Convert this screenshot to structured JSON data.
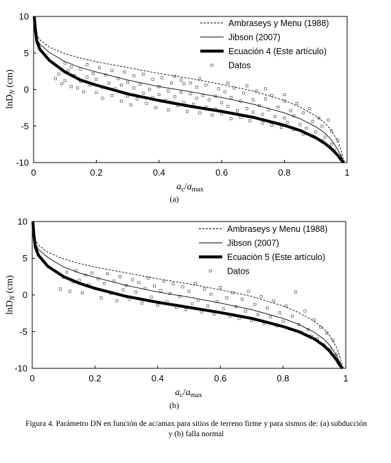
{
  "figure": {
    "caption_line1": "Figura 4. Parámetro DN en función de ac/amax para sitios de terreno firme y para sismos de: (a) subducción",
    "caption_line2": "y (b) falla normal"
  },
  "chart_data": [
    {
      "type": "line",
      "panel_label": "(a)",
      "xlabel": "ac/amax",
      "ylabel": "lnDN (cm)",
      "xlim": [
        0,
        1
      ],
      "ylim": [
        -10,
        10
      ],
      "x_ticks": [
        "0",
        "0.2",
        "0.4",
        "0.6",
        "0.8",
        "1"
      ],
      "y_ticks": [
        "10",
        "5",
        "0",
        "-5",
        "-10"
      ],
      "legend_position": "top-right",
      "series": [
        {
          "name": "Ambraseys y Menu (1988)",
          "style": "dashed",
          "x": [
            0.005,
            0.01,
            0.02,
            0.05,
            0.1,
            0.15,
            0.2,
            0.3,
            0.4,
            0.5,
            0.6,
            0.7,
            0.8,
            0.85,
            0.9,
            0.93,
            0.95,
            0.97,
            0.98,
            0.99
          ],
          "y": [
            9.5,
            7.4,
            6.8,
            5.8,
            4.9,
            4.3,
            3.8,
            3.0,
            2.2,
            1.5,
            0.7,
            -0.2,
            -1.5,
            -2.4,
            -3.6,
            -4.6,
            -5.6,
            -7.1,
            -8.2,
            -9.8
          ]
        },
        {
          "name": "Jibson (2007)",
          "style": "solid-thin",
          "x": [
            0.005,
            0.01,
            0.02,
            0.05,
            0.1,
            0.15,
            0.2,
            0.3,
            0.4,
            0.5,
            0.6,
            0.7,
            0.8,
            0.85,
            0.9,
            0.93,
            0.95,
            0.97,
            0.98,
            0.99
          ],
          "y": [
            9.0,
            7.0,
            6.2,
            5.1,
            3.8,
            3.0,
            2.4,
            1.3,
            0.4,
            -0.3,
            -1.1,
            -2.0,
            -3.2,
            -4.0,
            -5.1,
            -6.0,
            -6.9,
            -8.2,
            -9.1,
            -10.0
          ]
        },
        {
          "name": "Ecuación 4 (Este artículo)",
          "style": "solid-thick",
          "x": [
            0.002,
            0.005,
            0.01,
            0.02,
            0.05,
            0.1,
            0.15,
            0.2,
            0.3,
            0.4,
            0.5,
            0.6,
            0.7,
            0.8,
            0.85,
            0.9,
            0.93,
            0.95,
            0.97,
            0.98,
            0.99
          ],
          "y": [
            10.0,
            8.5,
            6.6,
            5.5,
            4.0,
            2.4,
            1.3,
            0.6,
            -0.6,
            -1.5,
            -2.3,
            -3.0,
            -3.8,
            -4.9,
            -5.6,
            -6.6,
            -7.4,
            -8.1,
            -9.0,
            -9.6,
            -10.0
          ]
        }
      ],
      "scatter": {
        "name": "Datos",
        "points": [
          [
            0.07,
            1.5
          ],
          [
            0.08,
            2.1
          ],
          [
            0.09,
            0.8
          ],
          [
            0.1,
            3.6
          ],
          [
            0.1,
            1.2
          ],
          [
            0.11,
            2.6
          ],
          [
            0.12,
            0.4
          ],
          [
            0.12,
            3.1
          ],
          [
            0.13,
            1.9
          ],
          [
            0.14,
            0.2
          ],
          [
            0.15,
            2.8
          ],
          [
            0.15,
            1.1
          ],
          [
            0.16,
            -0.3
          ],
          [
            0.17,
            3.4
          ],
          [
            0.17,
            1.7
          ],
          [
            0.18,
            0.6
          ],
          [
            0.19,
            2.2
          ],
          [
            0.2,
            -0.4
          ],
          [
            0.2,
            1.4
          ],
          [
            0.21,
            3.0
          ],
          [
            0.22,
            0.3
          ],
          [
            0.22,
            -1.2
          ],
          [
            0.23,
            2.0
          ],
          [
            0.24,
            0.9
          ],
          [
            0.25,
            -0.8
          ],
          [
            0.25,
            2.6
          ],
          [
            0.26,
            0.1
          ],
          [
            0.27,
            1.5
          ],
          [
            0.28,
            -1.6
          ],
          [
            0.28,
            0.6
          ],
          [
            0.29,
            2.4
          ],
          [
            0.3,
            -0.9
          ],
          [
            0.3,
            1.0
          ],
          [
            0.31,
            -2.1
          ],
          [
            0.32,
            0.2
          ],
          [
            0.32,
            1.9
          ],
          [
            0.33,
            -1.3
          ],
          [
            0.34,
            0.7
          ],
          [
            0.35,
            -0.5
          ],
          [
            0.35,
            2.1
          ],
          [
            0.36,
            -1.9
          ],
          [
            0.37,
            0.0
          ],
          [
            0.38,
            1.4
          ],
          [
            0.38,
            -1.1
          ],
          [
            0.39,
            -2.5
          ],
          [
            0.4,
            0.4
          ],
          [
            0.4,
            -0.7
          ],
          [
            0.41,
            1.6
          ],
          [
            0.42,
            -1.5
          ],
          [
            0.43,
            -0.2
          ],
          [
            0.43,
            -2.8
          ],
          [
            0.44,
            0.9
          ],
          [
            0.45,
            -1.0
          ],
          [
            0.45,
            1.8
          ],
          [
            0.46,
            -2.2
          ],
          [
            0.47,
            -0.4
          ],
          [
            0.48,
            0.8
          ],
          [
            0.48,
            -1.8
          ],
          [
            0.49,
            -3.0
          ],
          [
            0.5,
            -0.6
          ],
          [
            0.5,
            0.9
          ],
          [
            0.51,
            -2.0
          ],
          [
            0.52,
            -1.2
          ],
          [
            0.52,
            0.3
          ],
          [
            0.53,
            -3.2
          ],
          [
            0.54,
            -0.8
          ],
          [
            0.55,
            -2.4
          ],
          [
            0.55,
            0.6
          ],
          [
            0.56,
            -1.4
          ],
          [
            0.57,
            -3.5
          ],
          [
            0.58,
            -0.9
          ],
          [
            0.58,
            -2.7
          ],
          [
            0.59,
            0.1
          ],
          [
            0.6,
            -1.8
          ],
          [
            0.6,
            -3.3
          ],
          [
            0.61,
            -0.3
          ],
          [
            0.62,
            -2.3
          ],
          [
            0.63,
            -4.0
          ],
          [
            0.63,
            -1.1
          ],
          [
            0.64,
            0.2
          ],
          [
            0.65,
            -2.9
          ],
          [
            0.66,
            -1.6
          ],
          [
            0.66,
            -3.8
          ],
          [
            0.67,
            -0.5
          ],
          [
            0.68,
            -2.6
          ],
          [
            0.69,
            -4.3
          ],
          [
            0.7,
            -1.4
          ],
          [
            0.7,
            -3.1
          ],
          [
            0.71,
            -0.2
          ],
          [
            0.72,
            -2.2
          ],
          [
            0.73,
            -4.6
          ],
          [
            0.73,
            -3.4
          ],
          [
            0.74,
            -1.3
          ],
          [
            0.75,
            -2.8
          ],
          [
            0.76,
            -4.9
          ],
          [
            0.76,
            -0.8
          ],
          [
            0.77,
            -3.7
          ],
          [
            0.78,
            -2.4
          ],
          [
            0.79,
            -5.2
          ],
          [
            0.8,
            -3.9
          ],
          [
            0.8,
            -1.6
          ],
          [
            0.81,
            -4.5
          ],
          [
            0.82,
            -2.9
          ],
          [
            0.83,
            -5.5
          ],
          [
            0.83,
            -3.6
          ],
          [
            0.84,
            -1.9
          ],
          [
            0.85,
            -4.8
          ],
          [
            0.86,
            -6.1
          ],
          [
            0.86,
            -3.2
          ],
          [
            0.87,
            -5.3
          ],
          [
            0.88,
            -2.6
          ],
          [
            0.89,
            -6.4
          ],
          [
            0.89,
            -4.4
          ],
          [
            0.9,
            -5.8
          ],
          [
            0.91,
            -3.9
          ],
          [
            0.92,
            -7.0
          ],
          [
            0.92,
            -5.0
          ],
          [
            0.93,
            -6.5
          ],
          [
            0.94,
            -4.2
          ],
          [
            0.95,
            -7.5
          ],
          [
            0.95,
            -5.7
          ],
          [
            0.96,
            -8.3
          ],
          [
            0.97,
            -6.9
          ],
          [
            0.98,
            -9.1
          ],
          [
            0.47,
            1.3
          ],
          [
            0.53,
            1.5
          ],
          [
            0.62,
            0.9
          ],
          [
            0.68,
            0.5
          ],
          [
            0.74,
            0.1
          ],
          [
            0.8,
            -0.7
          ]
        ]
      }
    },
    {
      "type": "line",
      "panel_label": "(b)",
      "xlabel": "ac/amax",
      "ylabel": "lnDN (cm)",
      "xlim": [
        0,
        1
      ],
      "ylim": [
        -10,
        10
      ],
      "x_ticks": [
        "0",
        "0.2",
        "0.4",
        "0.6",
        "0.8",
        "1"
      ],
      "y_ticks": [
        "10",
        "5",
        "0",
        "-5",
        "-10"
      ],
      "legend_position": "top-right",
      "series": [
        {
          "name": "Ambraseys y Menu (1988)",
          "style": "dashed",
          "x": [
            0.005,
            0.01,
            0.02,
            0.05,
            0.1,
            0.15,
            0.2,
            0.3,
            0.4,
            0.5,
            0.6,
            0.7,
            0.8,
            0.85,
            0.9,
            0.93,
            0.95,
            0.97,
            0.98,
            0.99
          ],
          "y": [
            9.5,
            7.4,
            6.8,
            5.8,
            4.9,
            4.3,
            3.8,
            3.0,
            2.2,
            1.5,
            0.7,
            -0.2,
            -1.5,
            -2.4,
            -3.6,
            -4.6,
            -5.6,
            -7.1,
            -8.2,
            -9.8
          ]
        },
        {
          "name": "Jibson (2007)",
          "style": "solid-thin",
          "x": [
            0.005,
            0.01,
            0.02,
            0.05,
            0.1,
            0.15,
            0.2,
            0.3,
            0.4,
            0.5,
            0.6,
            0.7,
            0.8,
            0.85,
            0.9,
            0.93,
            0.95,
            0.97,
            0.98,
            0.99
          ],
          "y": [
            9.0,
            7.0,
            6.2,
            5.1,
            3.8,
            3.0,
            2.4,
            1.3,
            0.4,
            -0.3,
            -1.1,
            -2.0,
            -3.2,
            -4.0,
            -5.1,
            -6.0,
            -6.9,
            -8.2,
            -9.1,
            -10.0
          ]
        },
        {
          "name": "Ecuación 5 (Este artículo)",
          "style": "solid-thick",
          "x": [
            0.002,
            0.005,
            0.01,
            0.02,
            0.05,
            0.1,
            0.15,
            0.2,
            0.3,
            0.4,
            0.5,
            0.6,
            0.7,
            0.8,
            0.85,
            0.9,
            0.93,
            0.95,
            0.97,
            0.98,
            0.99
          ],
          "y": [
            10.0,
            8.3,
            6.5,
            5.4,
            3.9,
            2.5,
            1.6,
            0.9,
            -0.2,
            -1.0,
            -1.7,
            -2.4,
            -3.2,
            -4.3,
            -5.0,
            -6.0,
            -6.9,
            -7.7,
            -8.8,
            -9.5,
            -10.0
          ]
        }
      ],
      "scatter": {
        "name": "Datos",
        "points": [
          [
            0.09,
            0.8
          ],
          [
            0.1,
            2.4
          ],
          [
            0.11,
            3.1
          ],
          [
            0.12,
            0.5
          ],
          [
            0.13,
            1.8
          ],
          [
            0.14,
            3.3
          ],
          [
            0.15,
            2.0
          ],
          [
            0.16,
            0.3
          ],
          [
            0.17,
            2.7
          ],
          [
            0.18,
            1.4
          ],
          [
            0.19,
            3.0
          ],
          [
            0.2,
            0.9
          ],
          [
            0.21,
            2.2
          ],
          [
            0.22,
            -0.4
          ],
          [
            0.23,
            1.6
          ],
          [
            0.24,
            2.9
          ],
          [
            0.25,
            0.2
          ],
          [
            0.26,
            1.9
          ],
          [
            0.27,
            -0.8
          ],
          [
            0.28,
            2.5
          ],
          [
            0.29,
            0.7
          ],
          [
            0.3,
            1.3
          ],
          [
            0.31,
            -0.6
          ],
          [
            0.32,
            2.1
          ],
          [
            0.33,
            0.4
          ],
          [
            0.34,
            1.7
          ],
          [
            0.35,
            -1.1
          ],
          [
            0.36,
            0.9
          ],
          [
            0.37,
            2.3
          ],
          [
            0.38,
            -0.3
          ],
          [
            0.39,
            1.2
          ],
          [
            0.4,
            -1.4
          ],
          [
            0.41,
            0.6
          ],
          [
            0.42,
            1.9
          ],
          [
            0.43,
            -0.9
          ],
          [
            0.44,
            0.2
          ],
          [
            0.45,
            1.5
          ],
          [
            0.46,
            -1.7
          ],
          [
            0.47,
            -0.2
          ],
          [
            0.48,
            1.1
          ],
          [
            0.49,
            -2.0
          ],
          [
            0.5,
            0.5
          ],
          [
            0.51,
            -1.2
          ],
          [
            0.52,
            1.6
          ],
          [
            0.53,
            -0.7
          ],
          [
            0.54,
            -2.3
          ],
          [
            0.55,
            0.8
          ],
          [
            0.56,
            -1.5
          ],
          [
            0.57,
            0.1
          ],
          [
            0.58,
            -2.6
          ],
          [
            0.59,
            -0.9
          ],
          [
            0.6,
            1.0
          ],
          [
            0.61,
            -1.9
          ],
          [
            0.62,
            -0.4
          ],
          [
            0.63,
            -2.9
          ],
          [
            0.64,
            0.3
          ],
          [
            0.65,
            -1.6
          ],
          [
            0.66,
            -3.2
          ],
          [
            0.67,
            -0.6
          ],
          [
            0.68,
            -2.2
          ],
          [
            0.69,
            0.5
          ],
          [
            0.7,
            -3.5
          ],
          [
            0.71,
            -1.3
          ],
          [
            0.72,
            -2.7
          ],
          [
            0.73,
            -0.2
          ],
          [
            0.74,
            -3.9
          ],
          [
            0.75,
            -1.8
          ],
          [
            0.76,
            -3.0
          ],
          [
            0.77,
            -0.8
          ],
          [
            0.78,
            -4.2
          ],
          [
            0.79,
            -2.4
          ],
          [
            0.8,
            -3.6
          ],
          [
            0.81,
            -1.5
          ],
          [
            0.82,
            -4.6
          ],
          [
            0.83,
            -2.9
          ],
          [
            0.84,
            0.4
          ],
          [
            0.85,
            -4.0
          ],
          [
            0.86,
            -5.1
          ],
          [
            0.87,
            -2.2
          ],
          [
            0.88,
            -4.7
          ],
          [
            0.89,
            -5.6
          ],
          [
            0.9,
            -3.4
          ],
          [
            0.91,
            -6.0
          ],
          [
            0.92,
            -4.4
          ],
          [
            0.93,
            -6.8
          ],
          [
            0.94,
            -5.2
          ],
          [
            0.95,
            -7.4
          ],
          [
            0.96,
            -6.2
          ],
          [
            0.97,
            -8.1
          ],
          [
            0.98,
            -9.3
          ]
        ]
      }
    }
  ]
}
